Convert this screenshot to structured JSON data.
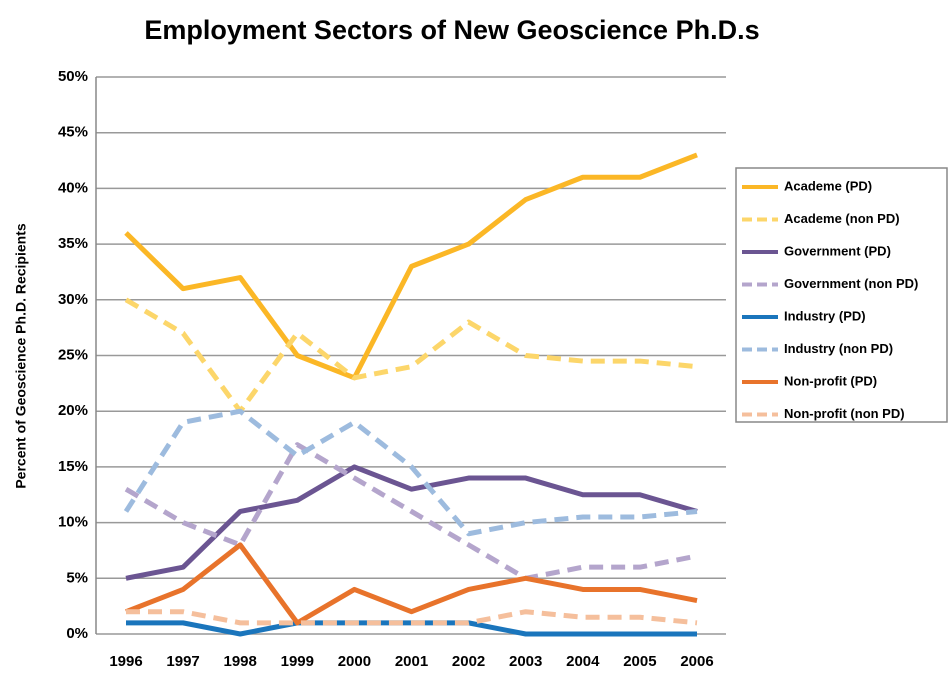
{
  "chart_data": {
    "type": "line",
    "title": "Employment Sectors of New Geoscience Ph.D.s",
    "y_label": "Percent of Geoscience Ph.D. Recipients",
    "categories": [
      "1996",
      "1997",
      "1998",
      "1999",
      "2000",
      "2001",
      "2002",
      "2003",
      "2004",
      "2005",
      "2006"
    ],
    "ylim": [
      0,
      50
    ],
    "yticks": [
      {
        "value": 0,
        "label": "0%"
      },
      {
        "value": 5,
        "label": "5%"
      },
      {
        "value": 10,
        "label": "10%"
      },
      {
        "value": 15,
        "label": "15%"
      },
      {
        "value": 20,
        "label": "20%"
      },
      {
        "value": 25,
        "label": "25%"
      },
      {
        "value": 30,
        "label": "30%"
      },
      {
        "value": 35,
        "label": "35%"
      },
      {
        "value": 40,
        "label": "40%"
      },
      {
        "value": 45,
        "label": "45%"
      },
      {
        "value": 50,
        "label": "50%"
      }
    ],
    "grid": true,
    "legend": "right",
    "series": [
      {
        "name": "Academe (PD)",
        "color": "#fbb726",
        "dashed": false,
        "values": [
          36,
          31,
          32,
          25,
          23,
          33,
          35,
          39,
          41,
          41,
          43
        ]
      },
      {
        "name": "Academe (non PD)",
        "color": "#fcd66a",
        "dashed": true,
        "values": [
          30,
          27,
          20,
          27,
          23,
          24,
          28,
          25,
          24.5,
          24.5,
          24
        ]
      },
      {
        "name": "Government (PD)",
        "color": "#6b5592",
        "dashed": false,
        "values": [
          5,
          6,
          11,
          12,
          15,
          13,
          14,
          14,
          12.5,
          12.5,
          11
        ]
      },
      {
        "name": "Government (non PD)",
        "color": "#b4a5cc",
        "dashed": true,
        "values": [
          13,
          10,
          8,
          17,
          14,
          11,
          8,
          5,
          6,
          6,
          7
        ]
      },
      {
        "name": "Industry (PD)",
        "color": "#1a75bc",
        "dashed": false,
        "values": [
          1,
          1,
          0,
          1,
          1,
          1,
          1,
          0,
          0,
          0,
          0
        ]
      },
      {
        "name": "Industry (non PD)",
        "color": "#9dbbde",
        "dashed": true,
        "values": [
          11,
          19,
          20,
          16,
          19,
          15,
          9,
          10,
          10.5,
          10.5,
          11
        ]
      },
      {
        "name": "Non-profit (PD)",
        "color": "#e8732b",
        "dashed": false,
        "values": [
          2,
          4,
          8,
          1,
          4,
          2,
          4,
          5,
          4,
          4,
          3
        ]
      },
      {
        "name": "Non-profit (non PD)",
        "color": "#f5bf9c",
        "dashed": true,
        "values": [
          2,
          2,
          1,
          1,
          1,
          1,
          1,
          2,
          1.5,
          1.5,
          1
        ]
      }
    ]
  }
}
